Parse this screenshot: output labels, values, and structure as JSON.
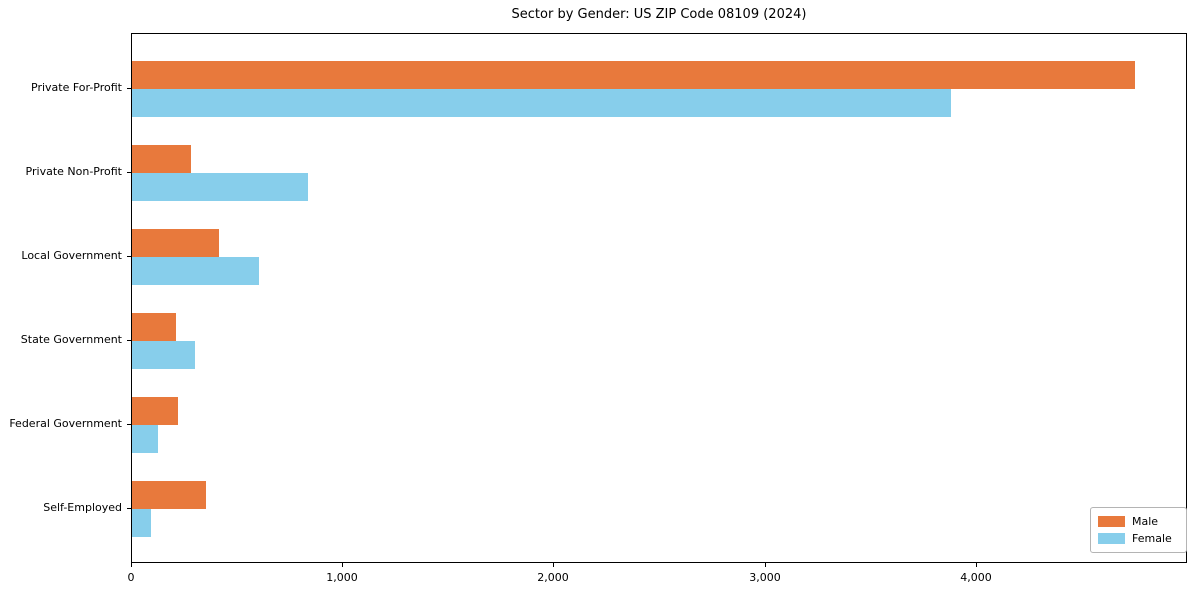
{
  "chart_data": {
    "type": "bar",
    "orientation": "horizontal",
    "title": "Sector by Gender: US ZIP Code 08109 (2024)",
    "categories": [
      "Private For-Profit",
      "Private Non-Profit",
      "Local Government",
      "State Government",
      "Federal Government",
      "Self-Employed"
    ],
    "series": [
      {
        "name": "Male",
        "color": "#E8793C",
        "values": [
          4750,
          280,
          410,
          210,
          220,
          350
        ]
      },
      {
        "name": "Female",
        "color": "#87CEEB",
        "values": [
          3880,
          835,
          600,
          300,
          125,
          90
        ]
      }
    ],
    "xlim": [
      0,
      5000
    ],
    "xticks": [
      0,
      1000,
      2000,
      3000,
      4000
    ],
    "xtick_labels": [
      "0",
      "1,000",
      "2,000",
      "3,000",
      "4,000"
    ],
    "ylabel": "",
    "xlabel": "",
    "grid": false,
    "legend_position": "lower right",
    "plot_background": "#ffffff",
    "axis_color": "#000000"
  }
}
